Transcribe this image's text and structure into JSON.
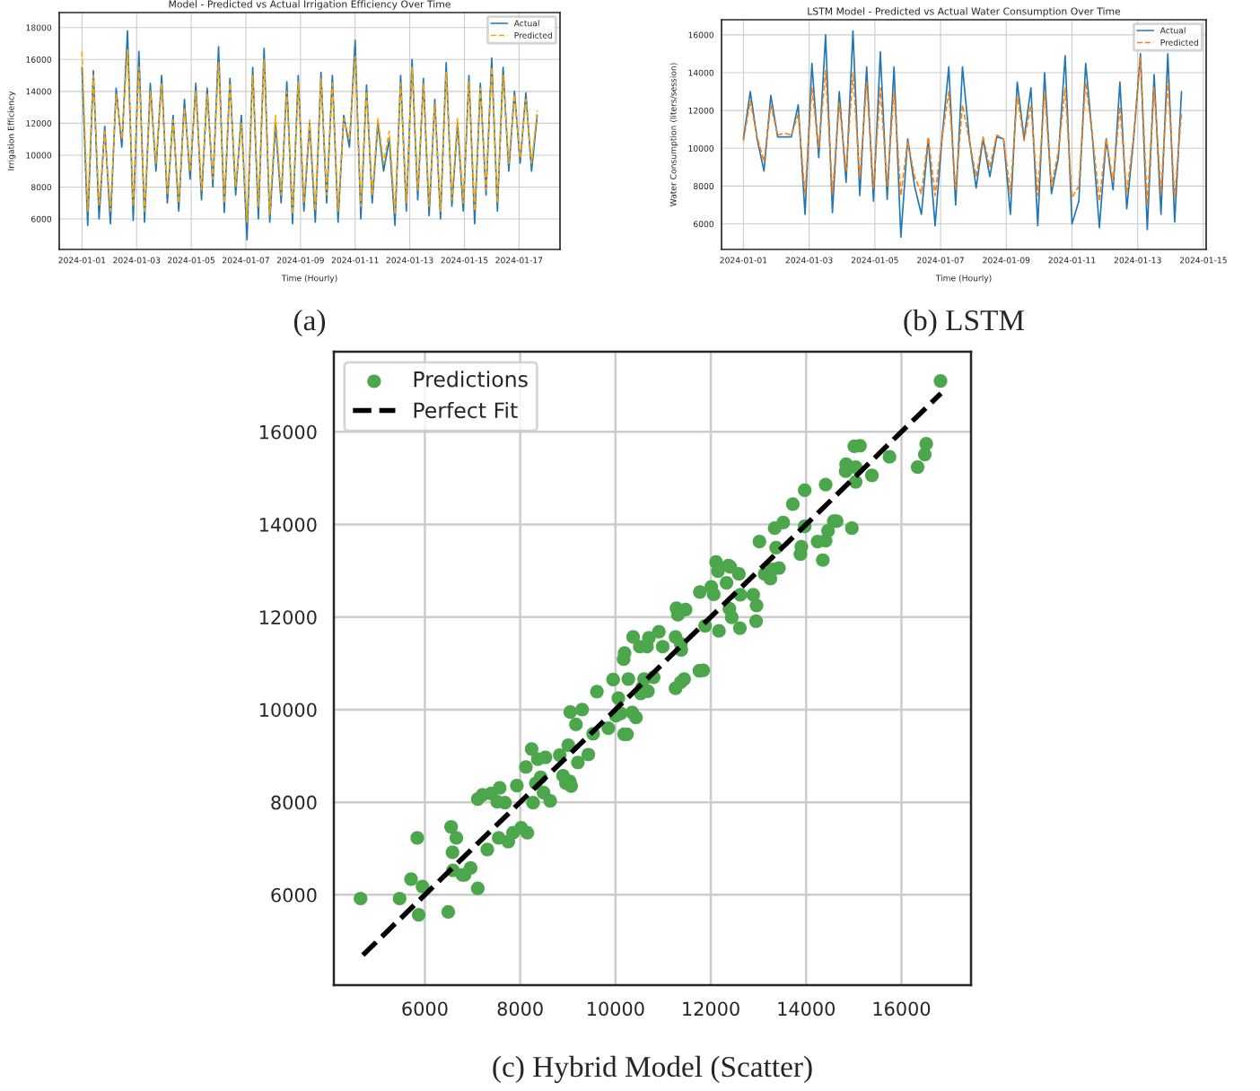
{
  "chart_data": [
    {
      "type": "line",
      "title": "Model - Predicted vs Actual Irrigation Efficiency Over Time",
      "xlabel": "Time (Hourly)",
      "ylabel": "Irrigation Efficiency",
      "annotations": [
        "(a)"
      ],
      "legend": "top right",
      "grid": true,
      "xlim": [
        "2023-12-31T04:00",
        "2024-01-18T12:00"
      ],
      "ylim": [
        4090,
        18940
      ],
      "xticks": [
        "2024-01-01",
        "2024-01-03",
        "2024-01-05",
        "2024-01-07",
        "2024-01-09",
        "2024-01-11",
        "2024-01-13",
        "2024-01-15",
        "2024-01-17"
      ],
      "yticks": [
        6000,
        8000,
        10000,
        12000,
        14000,
        16000,
        18000
      ],
      "x": [
        "2024-01-01T00:00",
        "2024-01-01T05:00",
        "2024-01-01T10:00",
        "2024-01-01T15:00",
        "2024-01-01T20:00",
        "2024-01-02T01:00",
        "2024-01-02T06:00",
        "2024-01-02T11:00",
        "2024-01-02T16:00",
        "2024-01-02T21:00",
        "2024-01-03T02:00",
        "2024-01-03T07:00",
        "2024-01-03T12:00",
        "2024-01-03T17:00",
        "2024-01-03T22:00",
        "2024-01-04T03:00",
        "2024-01-04T08:00",
        "2024-01-04T13:00",
        "2024-01-04T18:00",
        "2024-01-04T23:00",
        "2024-01-05T04:00",
        "2024-01-05T09:00",
        "2024-01-05T14:00",
        "2024-01-05T19:00",
        "2024-01-06T00:00",
        "2024-01-06T05:00",
        "2024-01-06T10:00",
        "2024-01-06T15:00",
        "2024-01-06T20:00",
        "2024-01-07T01:00",
        "2024-01-07T06:00",
        "2024-01-07T11:00",
        "2024-01-07T16:00",
        "2024-01-07T21:00",
        "2024-01-08T02:00",
        "2024-01-08T07:00",
        "2024-01-08T12:00",
        "2024-01-08T17:00",
        "2024-01-08T22:00",
        "2024-01-09T03:00",
        "2024-01-09T08:00",
        "2024-01-09T13:00",
        "2024-01-09T18:00",
        "2024-01-09T23:00",
        "2024-01-10T04:00",
        "2024-01-10T09:00",
        "2024-01-10T14:00",
        "2024-01-10T19:00",
        "2024-01-11T00:00",
        "2024-01-11T05:00",
        "2024-01-11T10:00",
        "2024-01-11T15:00",
        "2024-01-11T20:00",
        "2024-01-12T01:00",
        "2024-01-12T06:00",
        "2024-01-12T11:00",
        "2024-01-12T16:00",
        "2024-01-12T21:00",
        "2024-01-13T02:00",
        "2024-01-13T07:00",
        "2024-01-13T12:00",
        "2024-01-13T17:00",
        "2024-01-13T22:00",
        "2024-01-14T03:00",
        "2024-01-14T08:00",
        "2024-01-14T13:00",
        "2024-01-14T18:00",
        "2024-01-14T23:00",
        "2024-01-15T04:00",
        "2024-01-15T09:00",
        "2024-01-15T14:00",
        "2024-01-15T19:00",
        "2024-01-16T00:00",
        "2024-01-16T05:00",
        "2024-01-16T10:00",
        "2024-01-16T15:00",
        "2024-01-16T20:00",
        "2024-01-17T01:00",
        "2024-01-17T06:00",
        "2024-01-17T11:00",
        "2024-01-17T16:00"
      ],
      "series": [
        {
          "name": "Actual",
          "color": "#1f77b4",
          "line_style": "solid",
          "values": [
            15500,
            5600,
            15300,
            6000,
            11800,
            5700,
            14200,
            10500,
            17800,
            5900,
            16500,
            5800,
            14500,
            9000,
            15000,
            7000,
            12500,
            6500,
            13500,
            8500,
            14500,
            7200,
            14200,
            8000,
            16800,
            6400,
            14800,
            7500,
            12500,
            4700,
            15500,
            6000,
            16700,
            5800,
            12000,
            7000,
            14600,
            5700,
            15000,
            6500,
            12000,
            5800,
            15200,
            7000,
            15000,
            5800,
            12500,
            10500,
            17200,
            6000,
            14400,
            7000,
            12000,
            9000,
            11000,
            5600,
            15000,
            6500,
            16000,
            7200,
            14800,
            6200,
            13500,
            6000,
            15800,
            6800,
            12000,
            6500,
            15000,
            5700,
            14500,
            7500,
            16100,
            6500,
            15500,
            9000,
            14000,
            9500,
            13900,
            9000,
            12500
          ]
        },
        {
          "name": "Predicted",
          "color": "#ffa500",
          "line_style": "dashed",
          "values": [
            16500,
            6500,
            15000,
            6800,
            11500,
            6500,
            13800,
            11000,
            16600,
            6800,
            15500,
            6500,
            14000,
            9500,
            14500,
            7500,
            12200,
            7000,
            13000,
            9000,
            14000,
            7800,
            13800,
            8500,
            15800,
            7000,
            14500,
            8000,
            12000,
            5800,
            15000,
            6800,
            16000,
            6300,
            12500,
            7500,
            14000,
            6300,
            14600,
            7000,
            12200,
            6500,
            14800,
            7500,
            14500,
            6500,
            12300,
            11000,
            16200,
            6800,
            14000,
            7500,
            12300,
            9500,
            11500,
            6300,
            14500,
            7000,
            15500,
            7800,
            14500,
            6800,
            13200,
            6500,
            15200,
            7200,
            12300,
            7000,
            14600,
            6500,
            14200,
            7800,
            15500,
            7000,
            15000,
            9500,
            13800,
            9800,
            13500,
            9500,
            12800
          ]
        }
      ]
    },
    {
      "type": "line",
      "title": "LSTM Model - Predicted vs Actual Water Consumption Over Time",
      "xlabel": "Time (Hourly)",
      "ylabel": "Water Consumption (liters/session)",
      "annotations": [
        "(b) LSTM"
      ],
      "legend": "top right",
      "grid": true,
      "xlim": [
        "2023-12-31T08:00",
        "2024-01-15T02:00"
      ],
      "ylim": [
        4650,
        16800
      ],
      "xticks": [
        "2024-01-01",
        "2024-01-03",
        "2024-01-05",
        "2024-01-07",
        "2024-01-09",
        "2024-01-11",
        "2024-01-13",
        "2024-01-15"
      ],
      "yticks": [
        6000,
        8000,
        10000,
        12000,
        14000,
        16000
      ],
      "x": [
        "2024-01-01T00:00",
        "2024-01-01T05:00",
        "2024-01-01T10:00",
        "2024-01-01T15:00",
        "2024-01-01T20:00",
        "2024-01-02T01:00",
        "2024-01-02T06:00",
        "2024-01-02T11:00",
        "2024-01-02T16:00",
        "2024-01-02T21:00",
        "2024-01-03T02:00",
        "2024-01-03T07:00",
        "2024-01-03T12:00",
        "2024-01-03T17:00",
        "2024-01-03T22:00",
        "2024-01-04T03:00",
        "2024-01-04T08:00",
        "2024-01-04T13:00",
        "2024-01-04T18:00",
        "2024-01-04T23:00",
        "2024-01-05T04:00",
        "2024-01-05T09:00",
        "2024-01-05T14:00",
        "2024-01-05T19:00",
        "2024-01-06T00:00",
        "2024-01-06T05:00",
        "2024-01-06T10:00",
        "2024-01-06T15:00",
        "2024-01-06T20:00",
        "2024-01-07T01:00",
        "2024-01-07T06:00",
        "2024-01-07T11:00",
        "2024-01-07T16:00",
        "2024-01-07T21:00",
        "2024-01-08T02:00",
        "2024-01-08T07:00",
        "2024-01-08T12:00",
        "2024-01-08T17:00",
        "2024-01-08T22:00",
        "2024-01-09T03:00",
        "2024-01-09T08:00",
        "2024-01-09T13:00",
        "2024-01-09T18:00",
        "2024-01-09T23:00",
        "2024-01-10T04:00",
        "2024-01-10T09:00",
        "2024-01-10T14:00",
        "2024-01-10T19:00",
        "2024-01-11T00:00",
        "2024-01-11T05:00",
        "2024-01-11T10:00",
        "2024-01-11T15:00",
        "2024-01-11T20:00",
        "2024-01-12T01:00",
        "2024-01-12T06:00",
        "2024-01-12T11:00",
        "2024-01-12T16:00",
        "2024-01-12T21:00",
        "2024-01-13T02:00",
        "2024-01-13T07:00",
        "2024-01-13T12:00",
        "2024-01-13T17:00",
        "2024-01-13T22:00",
        "2024-01-14T03:00",
        "2024-01-14T08:00"
      ],
      "series": [
        {
          "name": "Actual",
          "color": "#1f77b4",
          "line_style": "solid",
          "values": [
            10500,
            13000,
            10500,
            8800,
            12800,
            10600,
            10600,
            10600,
            12300,
            6500,
            14500,
            9500,
            16000,
            6600,
            13000,
            8200,
            16200,
            7500,
            14300,
            7200,
            15100,
            7300,
            14300,
            5300,
            10500,
            8000,
            6500,
            10500,
            5900,
            10500,
            14300,
            7000,
            14300,
            10500,
            7900,
            10500,
            8500,
            10600,
            10500,
            6500,
            13500,
            10500,
            13200,
            5900,
            14000,
            7600,
            9500,
            14900,
            6000,
            7200,
            14500,
            10500,
            5800,
            10500,
            7800,
            13500,
            6800,
            10500,
            15000,
            5700,
            13900,
            6500,
            15000,
            6100,
            13000
          ]
        },
        {
          "name": "Predicted",
          "color": "#ff7f0e",
          "line_style": "dashed",
          "values": [
            10400,
            12500,
            10600,
            9300,
            12300,
            10700,
            10800,
            10700,
            11800,
            7600,
            13200,
            10000,
            14100,
            7600,
            12400,
            8800,
            14000,
            8400,
            13500,
            7900,
            13200,
            8000,
            13000,
            7500,
            10400,
            8500,
            7600,
            10600,
            7500,
            10500,
            13000,
            7800,
            12300,
            10400,
            8500,
            10600,
            9000,
            10700,
            10500,
            7600,
            12800,
            10400,
            12300,
            7500,
            13000,
            8000,
            9800,
            13200,
            7400,
            8000,
            13500,
            10600,
            7200,
            10500,
            8200,
            12200,
            7600,
            10600,
            14800,
            7000,
            13200,
            7600,
            13600,
            7400,
            11900
          ]
        }
      ]
    },
    {
      "type": "scatter",
      "annotations": [
        "(c) Hybrid Model (Scatter)"
      ],
      "legend": "top left",
      "grid": true,
      "xlim": [
        4090,
        17460
      ],
      "ylim": [
        4050,
        17730
      ],
      "xticks": [
        6000,
        8000,
        10000,
        12000,
        14000,
        16000
      ],
      "yticks": [
        6000,
        8000,
        10000,
        12000,
        14000,
        16000
      ],
      "series": [
        {
          "name": "Predictions",
          "type": "scatter",
          "color": "#4ca64c",
          "marker": "circle",
          "x": [
            4650,
            5470,
            5710,
            5840,
            5950,
            5870,
            6490,
            6550,
            6660,
            6580,
            6590,
            6790,
            6830,
            6960,
            7110,
            7310,
            7110,
            7210,
            7390,
            7570,
            7520,
            7550,
            7680,
            7750,
            7850,
            8020,
            7930,
            8120,
            8150,
            8240,
            8270,
            8370,
            8330,
            8430,
            8490,
            8530,
            8630,
            8830,
            8900,
            8960,
            9040,
            9070,
            9010,
            9050,
            9170,
            9210,
            9300,
            9430,
            9530,
            9610,
            9850,
            9950,
            10010,
            10060,
            10110,
            10180,
            10240,
            10170,
            10190,
            10270,
            10350,
            10370,
            10430,
            10510,
            10560,
            10530,
            10600,
            10660,
            10700,
            10680,
            10800,
            10910,
            10990,
            11260,
            11260,
            11370,
            11370,
            11440,
            11380,
            11760,
            11840,
            11280,
            11310,
            11470,
            11770,
            11880,
            12010,
            12060,
            12110,
            12150,
            12370,
            12410,
            12330,
            12590,
            12620,
            12390,
            12440,
            12170,
            12610,
            12890,
            12960,
            12950,
            13130,
            13250,
            13300,
            13430,
            13020,
            13370,
            13340,
            13520,
            13720,
            13970,
            13970,
            13880,
            13900,
            14240,
            14350,
            14410,
            14410,
            14460,
            14580,
            14640,
            14960,
            14840,
            14830,
            15010,
            15130,
            15040,
            15040,
            15380,
            15750,
            16340,
            16490,
            16520,
            16820
          ],
          "values": [
            5920,
            5920,
            6340,
            7230,
            6180,
            5570,
            5630,
            7470,
            7230,
            6920,
            6530,
            6430,
            6430,
            6580,
            6140,
            6980,
            8070,
            8160,
            8190,
            8310,
            8010,
            7230,
            7990,
            7150,
            7340,
            7450,
            8360,
            8760,
            7340,
            9150,
            7990,
            8930,
            8410,
            8540,
            8210,
            8970,
            8030,
            9020,
            8570,
            8410,
            8450,
            8350,
            9230,
            9950,
            9680,
            8860,
            10000,
            9030,
            9480,
            10390,
            9600,
            10650,
            9870,
            10250,
            9920,
            9470,
            9470,
            11090,
            11220,
            10660,
            9940,
            11570,
            9830,
            11360,
            10480,
            10350,
            10660,
            11360,
            11550,
            10400,
            10700,
            11680,
            11360,
            11570,
            10460,
            10590,
            11420,
            10660,
            11290,
            10840,
            10850,
            12190,
            12050,
            12160,
            12540,
            11810,
            12650,
            12490,
            13190,
            12990,
            13110,
            13080,
            12740,
            12930,
            12480,
            12180,
            11990,
            11700,
            11760,
            12480,
            12250,
            11910,
            12930,
            12830,
            13030,
            13060,
            13630,
            13500,
            13920,
            14040,
            14440,
            14740,
            13960,
            13360,
            13520,
            13630,
            13230,
            14860,
            13650,
            13860,
            14070,
            14070,
            13920,
            15300,
            15150,
            15690,
            15700,
            14920,
            15240,
            15060,
            15460,
            15240,
            15510,
            15740,
            17100
          ]
        },
        {
          "name": "Perfect Fit",
          "type": "line",
          "color": "#000000",
          "line_style": "dashed",
          "x": [
            4700,
            16830
          ],
          "values": [
            4700,
            16830
          ]
        }
      ]
    }
  ]
}
